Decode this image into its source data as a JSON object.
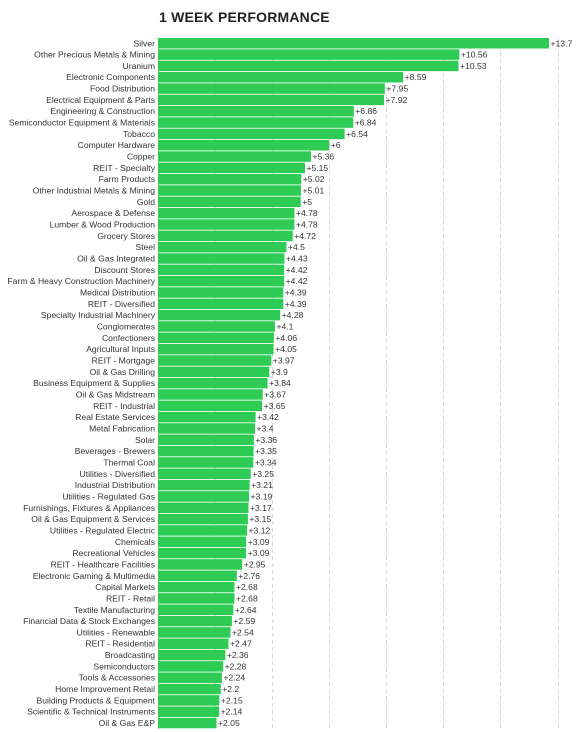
{
  "chart_data": {
    "type": "bar",
    "orientation": "horizontal",
    "title": "1 WEEK PERFORMANCE",
    "xlim": [
      0,
      14
    ],
    "grid": "vertical dashed",
    "bar_color": "#2ecc55",
    "categories": [
      "Silver",
      "Other Precious Metals & Mining",
      "Uranium",
      "Electronic Components",
      "Food Distribution",
      "Electrical Equipment & Parts",
      "Engineering & Construction",
      "Semiconductor Equipment & Materials",
      "Tobacco",
      "Computer Hardware",
      "Copper",
      "REIT - Specialty",
      "Farm Products",
      "Other Industrial Metals & Mining",
      "Gold",
      "Aerospace & Defense",
      "Lumber & Wood Production",
      "Grocery Stores",
      "Steel",
      "Oil & Gas Integrated",
      "Discount Stores",
      "Farm & Heavy Construction Machinery",
      "Medical Distribution",
      "REIT - Diversified",
      "Specialty Industrial Machinery",
      "Conglomerates",
      "Confectioners",
      "Agricultural Inputs",
      "REIT - Mortgage",
      "Oil & Gas Drilling",
      "Business Equipment & Supplies",
      "Oil & Gas Midstream",
      "REIT - Industrial",
      "Real Estate Services",
      "Metal Fabrication",
      "Solar",
      "Beverages - Brewers",
      "Thermal Coal",
      "Utilities - Diversified",
      "Industrial Distribution",
      "Utilities - Regulated Gas",
      "Furnishings, Fixtures & Appliances",
      "Oil & Gas Equipment & Services",
      "Utilities - Regulated Electric",
      "Chemicals",
      "Recreational Vehicles",
      "REIT - Healthcare Facilities",
      "Electronic Gaming & Multimedia",
      "Capital Markets",
      "REIT - Retail",
      "Textile Manufacturing",
      "Financial Data & Stock Exchanges",
      "Utilities - Renewable",
      "REIT - Residential",
      "Broadcasting",
      "Semiconductors",
      "Tools & Accessories",
      "Home Improvement Retail",
      "Building Products & Equipment",
      "Scientific & Technical Instruments",
      "Oil & Gas E&P"
    ],
    "values": [
      13.7,
      10.56,
      10.53,
      8.59,
      7.95,
      7.92,
      6.86,
      6.84,
      6.54,
      6,
      5.36,
      5.15,
      5.02,
      5.01,
      5,
      4.78,
      4.78,
      4.72,
      4.5,
      4.43,
      4.42,
      4.42,
      4.39,
      4.39,
      4.28,
      4.1,
      4.06,
      4.05,
      3.97,
      3.9,
      3.84,
      3.67,
      3.65,
      3.42,
      3.4,
      3.36,
      3.35,
      3.34,
      3.25,
      3.21,
      3.19,
      3.17,
      3.15,
      3.12,
      3.09,
      3.09,
      2.95,
      2.76,
      2.68,
      2.68,
      2.64,
      2.59,
      2.54,
      2.47,
      2.36,
      2.28,
      2.24,
      2.2,
      2.15,
      2.14,
      2.05
    ],
    "value_labels": [
      "+13.7",
      "+10.56",
      "+10.53",
      "+8.59",
      "+7.95",
      "+7.92",
      "+6.86",
      "+6.84",
      "+6.54",
      "+6",
      "+5.36",
      "+5.15",
      "+5.02",
      "+5.01",
      "+5",
      "+4.78",
      "+4.78",
      "+4.72",
      "+4.5",
      "+4.43",
      "+4.42",
      "+4.42",
      "+4.39",
      "+4.39",
      "+4.28",
      "+4.1",
      "+4.06",
      "+4.05",
      "+3.97",
      "+3.9",
      "+3.84",
      "+3.67",
      "+3.65",
      "+3.42",
      "+3.4",
      "+3.36",
      "+3.35",
      "+3.34",
      "+3.25",
      "+3.21",
      "+3.19",
      "+3.17",
      "+3.15",
      "+3.12",
      "+3.09",
      "+3.09",
      "+2.95",
      "+2.76",
      "+2.68",
      "+2.68",
      "+2.64",
      "+2.59",
      "+2.54",
      "+2.47",
      "+2.36",
      "+2.28",
      "+2.24",
      "+2.2",
      "+2.15",
      "+2.14",
      "+2.05"
    ]
  }
}
